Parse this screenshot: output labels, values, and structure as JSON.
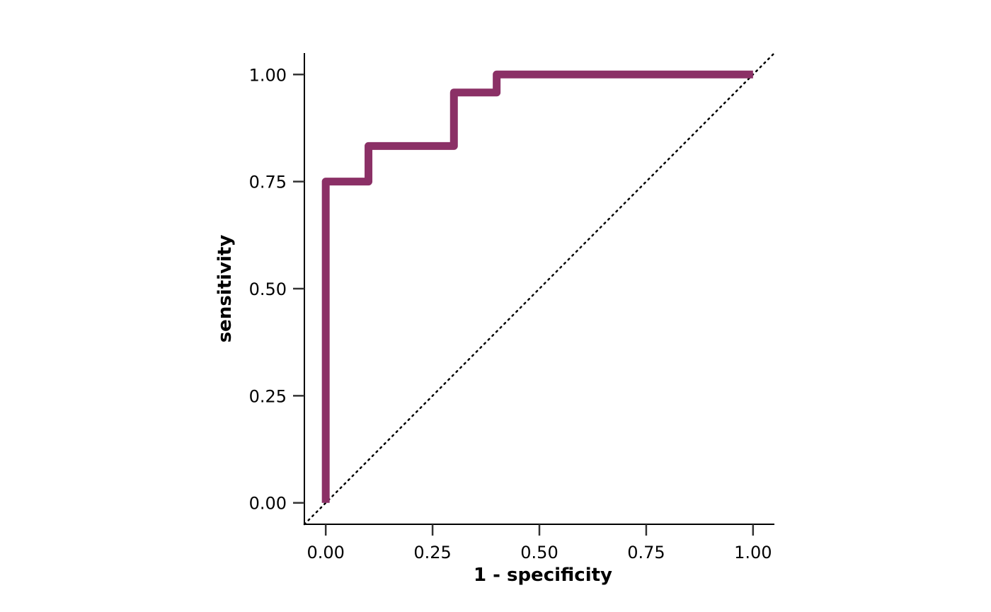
{
  "chart_data": {
    "type": "line",
    "title": "",
    "xlabel": "1 - specificity",
    "ylabel": "sensitivity",
    "xlim": [
      -0.05,
      1.05
    ],
    "ylim": [
      -0.05,
      1.05
    ],
    "x_ticks": [
      0,
      0.25,
      0.5,
      0.75,
      1
    ],
    "x_tick_labels": [
      "0.00",
      "0.25",
      "0.50",
      "0.75",
      "1.00"
    ],
    "y_ticks": [
      0,
      0.25,
      0.5,
      0.75,
      1
    ],
    "y_tick_labels": [
      "0.00",
      "0.25",
      "0.50",
      "0.75",
      "1.00"
    ],
    "grid": false,
    "legend": "none",
    "series": [
      {
        "style": "step",
        "color": "#8B3066",
        "points": [
          {
            "x": 0.0,
            "y": 0.0
          },
          {
            "x": 0.0,
            "y": 0.75
          },
          {
            "x": 0.1,
            "y": 0.75
          },
          {
            "x": 0.1,
            "y": 0.833
          },
          {
            "x": 0.3,
            "y": 0.833
          },
          {
            "x": 0.3,
            "y": 0.958
          },
          {
            "x": 0.4,
            "y": 0.958
          },
          {
            "x": 0.4,
            "y": 1.0
          },
          {
            "x": 1.0,
            "y": 1.0
          }
        ]
      }
    ],
    "reference_line": {
      "style": "dotted",
      "color": "#000000",
      "points": [
        {
          "x": -0.05,
          "y": -0.05
        },
        {
          "x": 1.05,
          "y": 1.05
        }
      ]
    }
  }
}
